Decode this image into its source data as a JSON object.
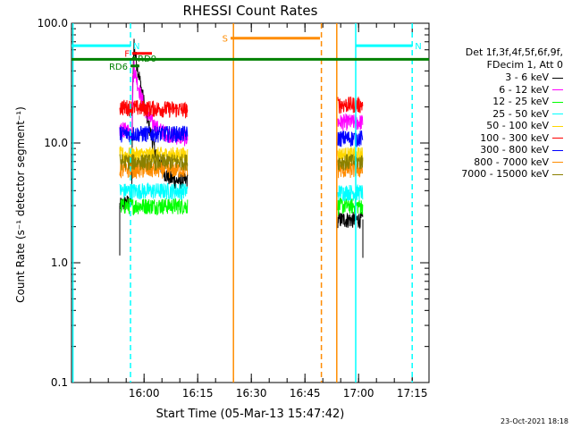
{
  "chart_data": {
    "type": "line",
    "title": "RHESSI Count Rates",
    "xlabel": "Start Time (05-Mar-13 15:47:42)",
    "ylabel": "Count Rate (s⁻¹ detector segment⁻¹)",
    "yscale": "log",
    "ylim": [
      0.1,
      100.0
    ],
    "xlim_minutes": [
      -8,
      92
    ],
    "y_ticks": [
      "100.0",
      "10.0",
      "1.0",
      "0.1"
    ],
    "x_ticks": [
      {
        "label": "16:00",
        "t": 12.3
      },
      {
        "label": "16:15",
        "t": 27.3
      },
      {
        "label": "16:30",
        "t": 42.3
      },
      {
        "label": "16:45",
        "t": 57.3
      },
      {
        "label": "17:00",
        "t": 72.3
      },
      {
        "label": "17:15",
        "t": 87.3
      }
    ],
    "legend_header": [
      "Det 1f,3f,4f,5f,6f,9f,",
      "FDecim 1, Att 0"
    ],
    "series": [
      {
        "name": "3 - 6 keV",
        "color": "#000000",
        "level": 3.0,
        "level2": 2.3,
        "peak": 62,
        "end_level": 4.8
      },
      {
        "name": "6 - 12 keV",
        "color": "#ff00ff",
        "level": 13.0,
        "level2": 15.0,
        "peak": 48,
        "end_level": 11.0
      },
      {
        "name": "12 - 25 keV",
        "color": "#00ff00",
        "level": 3.0,
        "level2": 3.0,
        "peak": 3.2,
        "end_level": 3.0
      },
      {
        "name": "25 - 50 keV",
        "color": "#00ffff",
        "level": 4.0,
        "level2": 3.9,
        "peak": 4.3,
        "end_level": 4.0
      },
      {
        "name": "50 - 100 keV",
        "color": "#ffd700",
        "level": 8.0,
        "level2": 8.0,
        "peak": 8.5,
        "end_level": 8.0
      },
      {
        "name": "100 - 300 keV",
        "color": "#ff0000",
        "level": 20.0,
        "level2": 21.0,
        "peak": 21.0,
        "end_level": 19.0
      },
      {
        "name": "300 - 800 keV",
        "color": "#0000ff",
        "level": 12.0,
        "level2": 11.0,
        "peak": 13.0,
        "end_level": 12.0
      },
      {
        "name": "800 - 7000 keV",
        "color": "#ff8c00",
        "level": 6.0,
        "level2": 6.0,
        "peak": 6.5,
        "end_level": 6.0
      },
      {
        "name": "7000 - 15000 keV",
        "color": "#8b8000",
        "level": 7.0,
        "level2": 7.0,
        "peak": 7.2,
        "end_level": 7.0
      }
    ],
    "data_segments": [
      {
        "start": 5.5,
        "end": 24.5
      },
      {
        "start": 66.5,
        "end": 73.5
      }
    ],
    "annotations": [
      {
        "label": "S",
        "color": "#ff8c00",
        "t0": 36.5,
        "t1": 61.5,
        "y": 75
      },
      {
        "label": "N",
        "color": "#00ffff",
        "t0": -8,
        "t1": 8.5,
        "y": 65
      },
      {
        "label": "N",
        "color": "#00ffff",
        "t0": 71.5,
        "t1": 87.3,
        "y": 65
      },
      {
        "label": "F",
        "color": "#ff0000",
        "t0": 9.0,
        "t1": 14.5,
        "y": 56
      },
      {
        "label": "RD0",
        "color": "#008000",
        "t0": 9.0,
        "t1": 10.0,
        "y": 51
      },
      {
        "label": "RD6",
        "color": "#008000",
        "t0": 8.5,
        "t1": 11.0,
        "y": 44
      }
    ],
    "green_line_level": 50,
    "vertical_lines": [
      {
        "t": -7.6,
        "color": "#00ffff",
        "style": "solid"
      },
      {
        "t": 8.5,
        "color": "#00ffff",
        "style": "dashed"
      },
      {
        "t": 37.3,
        "color": "#ff8c00",
        "style": "solid"
      },
      {
        "t": 61.9,
        "color": "#ff8c00",
        "style": "dashed"
      },
      {
        "t": 66.2,
        "color": "#ff8c00",
        "style": "solid"
      },
      {
        "t": 71.5,
        "color": "#00ffff",
        "style": "solid"
      },
      {
        "t": 87.3,
        "color": "#00ffff",
        "style": "dashed"
      }
    ],
    "timestamp": "23-Oct-2021 18:18"
  }
}
